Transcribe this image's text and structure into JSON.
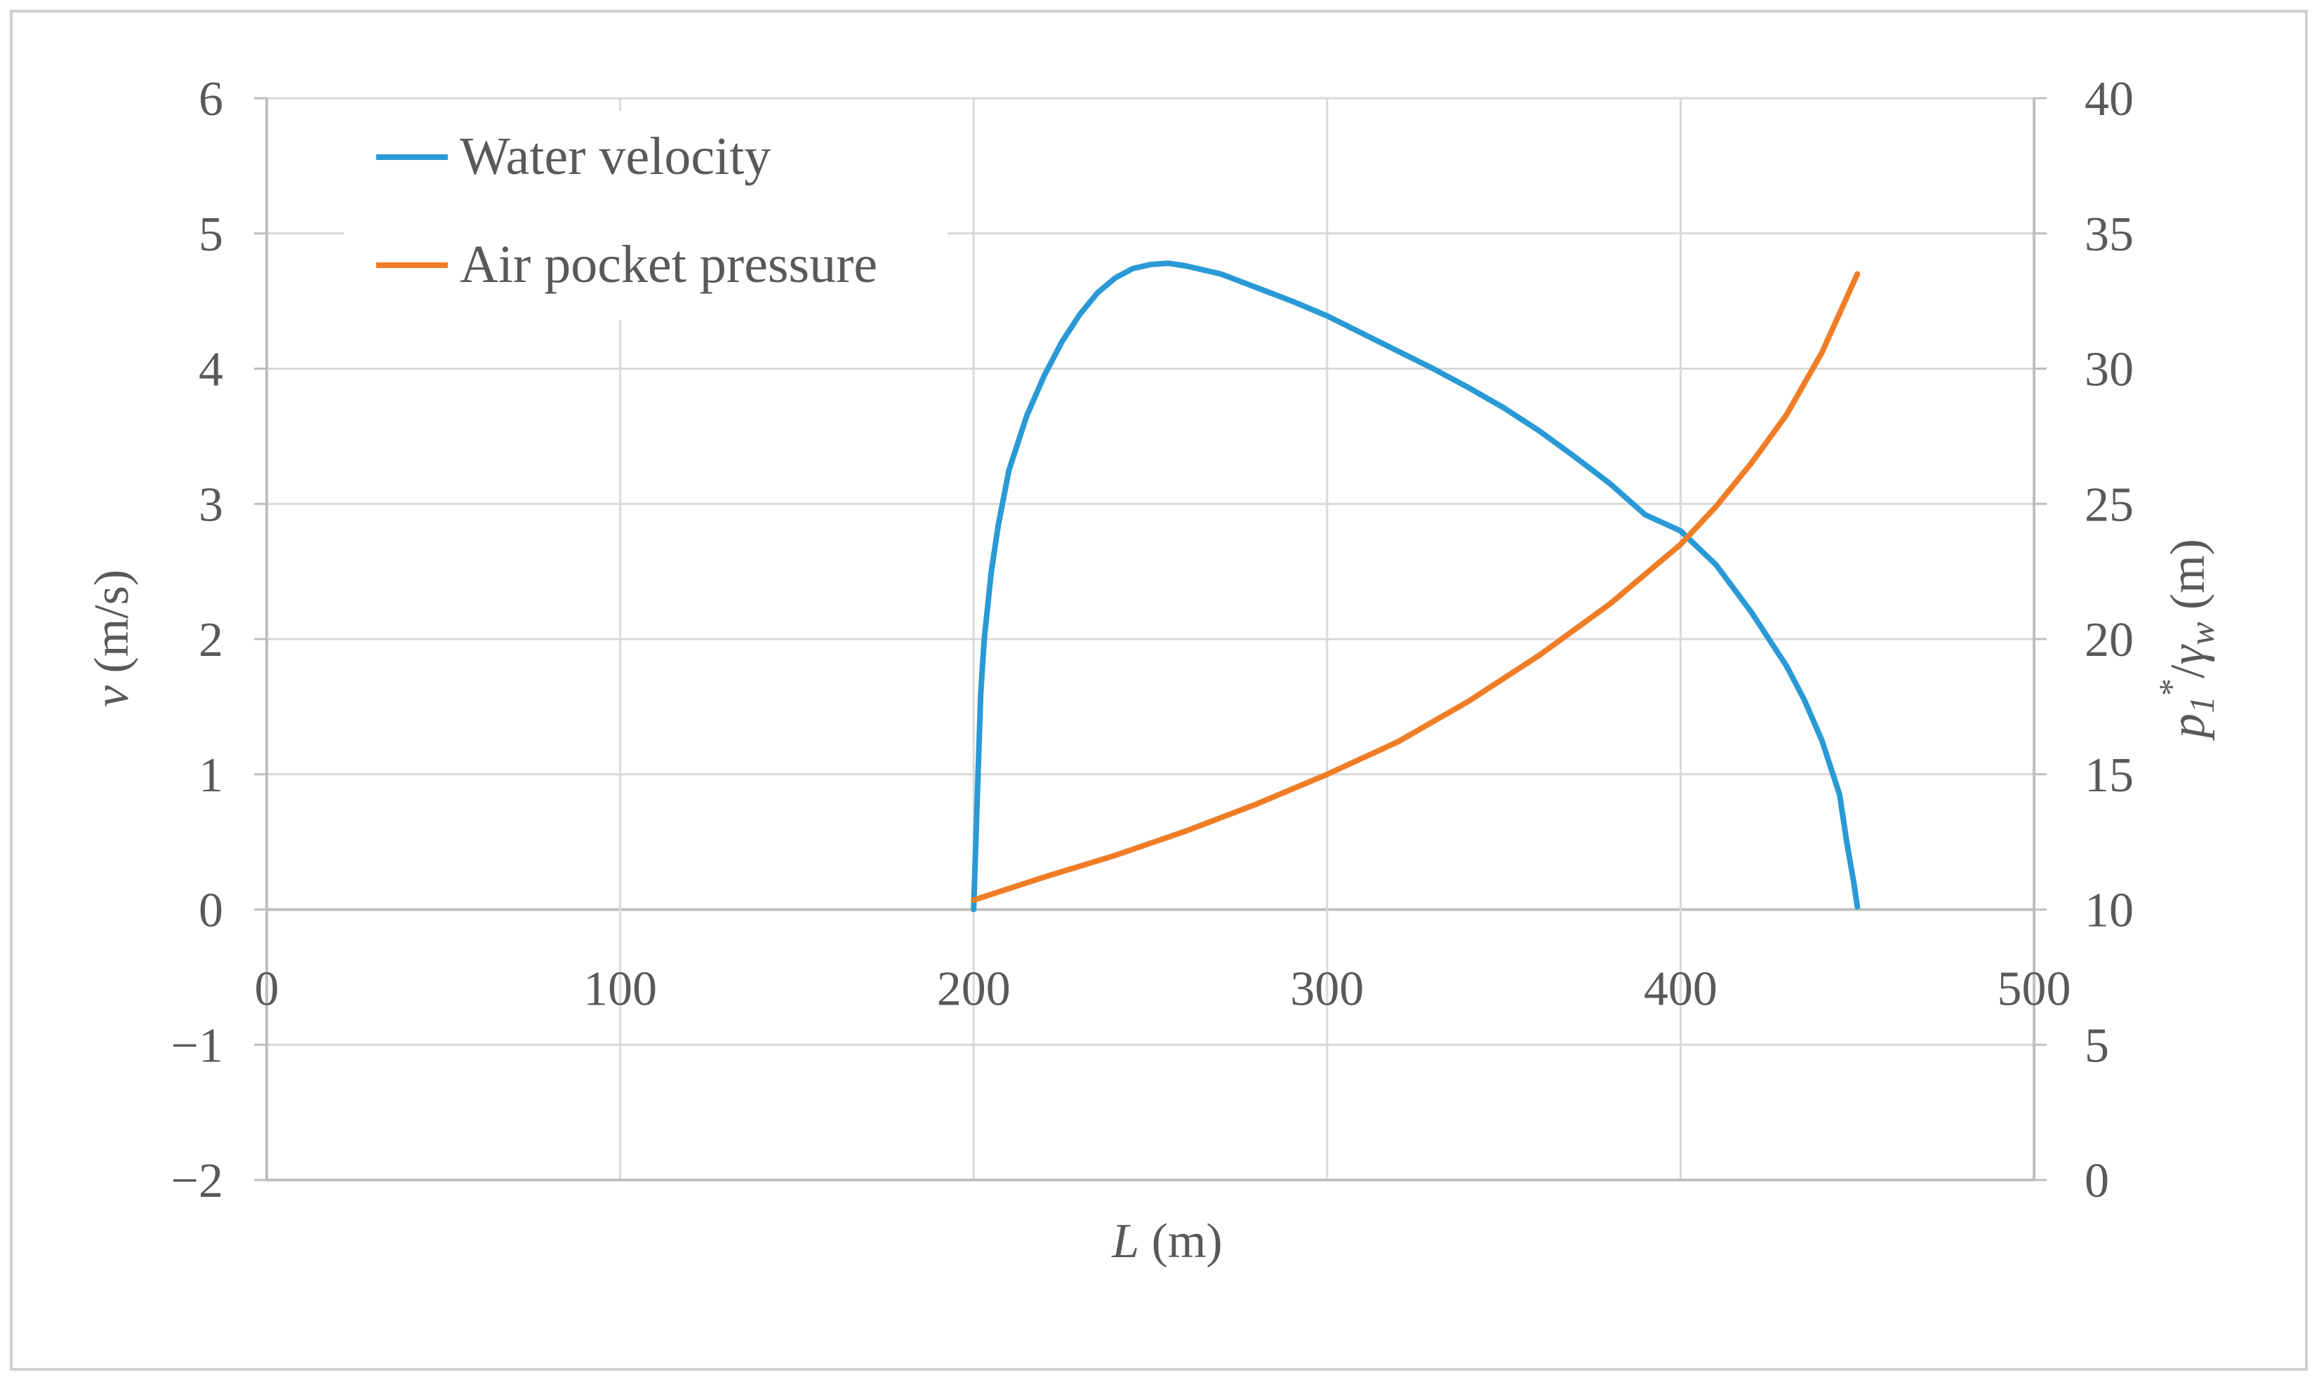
{
  "chart_data": {
    "type": "line",
    "title": "",
    "xlabel_var": "L",
    "xlabel_unit": " (m)",
    "ylabel_var": "v",
    "ylabel_unit": " (m/s)",
    "y2label_var": "p",
    "y2label_sub": "1",
    "y2label_sup": "*",
    "y2label_mid": "/",
    "y2label_var2": "γ",
    "y2label_sub2": "w",
    "y2label_unit": " (m)",
    "xlim": [
      0,
      500
    ],
    "ylim": [
      -2,
      6
    ],
    "y2lim": [
      0,
      40
    ],
    "x_ticks": [
      "0",
      "100",
      "200",
      "300",
      "400",
      "500"
    ],
    "y_ticks": [
      "−2",
      "−1",
      "0",
      "1",
      "2",
      "3",
      "4",
      "5",
      "6"
    ],
    "y2_ticks": [
      "0",
      "5",
      "10",
      "15",
      "20",
      "25",
      "30",
      "35",
      "40"
    ],
    "grid": true,
    "legend_position": "top-left",
    "series": [
      {
        "name": "Water velocity",
        "axis": "left",
        "color": "#2a9ad6",
        "points": [
          [
            200,
            0
          ],
          [
            201,
            0.8
          ],
          [
            202,
            1.6
          ],
          [
            203,
            2.0
          ],
          [
            205,
            2.5
          ],
          [
            207,
            2.85
          ],
          [
            210,
            3.25
          ],
          [
            215,
            3.65
          ],
          [
            220,
            3.95
          ],
          [
            225,
            4.2
          ],
          [
            230,
            4.4
          ],
          [
            235,
            4.56
          ],
          [
            240,
            4.67
          ],
          [
            245,
            4.74
          ],
          [
            250,
            4.77
          ],
          [
            255,
            4.78
          ],
          [
            260,
            4.76
          ],
          [
            270,
            4.7
          ],
          [
            280,
            4.6
          ],
          [
            290,
            4.5
          ],
          [
            300,
            4.39
          ],
          [
            310,
            4.26
          ],
          [
            320,
            4.13
          ],
          [
            330,
            4.0
          ],
          [
            340,
            3.86
          ],
          [
            350,
            3.71
          ],
          [
            360,
            3.54
          ],
          [
            370,
            3.35
          ],
          [
            380,
            3.15
          ],
          [
            390,
            2.92
          ],
          [
            400,
            2.8
          ],
          [
            410,
            2.55
          ],
          [
            420,
            2.2
          ],
          [
            430,
            1.8
          ],
          [
            435,
            1.55
          ],
          [
            440,
            1.25
          ],
          [
            445,
            0.85
          ],
          [
            447,
            0.5
          ],
          [
            449,
            0.2
          ],
          [
            450,
            0.02
          ]
        ]
      },
      {
        "name": "Air pocket pressure",
        "axis": "right",
        "color": "#f07d26",
        "points": [
          [
            200,
            10.35
          ],
          [
            220,
            11.2
          ],
          [
            240,
            12.0
          ],
          [
            260,
            12.9
          ],
          [
            280,
            13.9
          ],
          [
            300,
            15.0
          ],
          [
            320,
            16.2
          ],
          [
            340,
            17.7
          ],
          [
            360,
            19.4
          ],
          [
            380,
            21.3
          ],
          [
            400,
            23.5
          ],
          [
            410,
            24.9
          ],
          [
            420,
            26.5
          ],
          [
            430,
            28.3
          ],
          [
            440,
            30.6
          ],
          [
            450,
            33.5
          ]
        ]
      }
    ]
  }
}
